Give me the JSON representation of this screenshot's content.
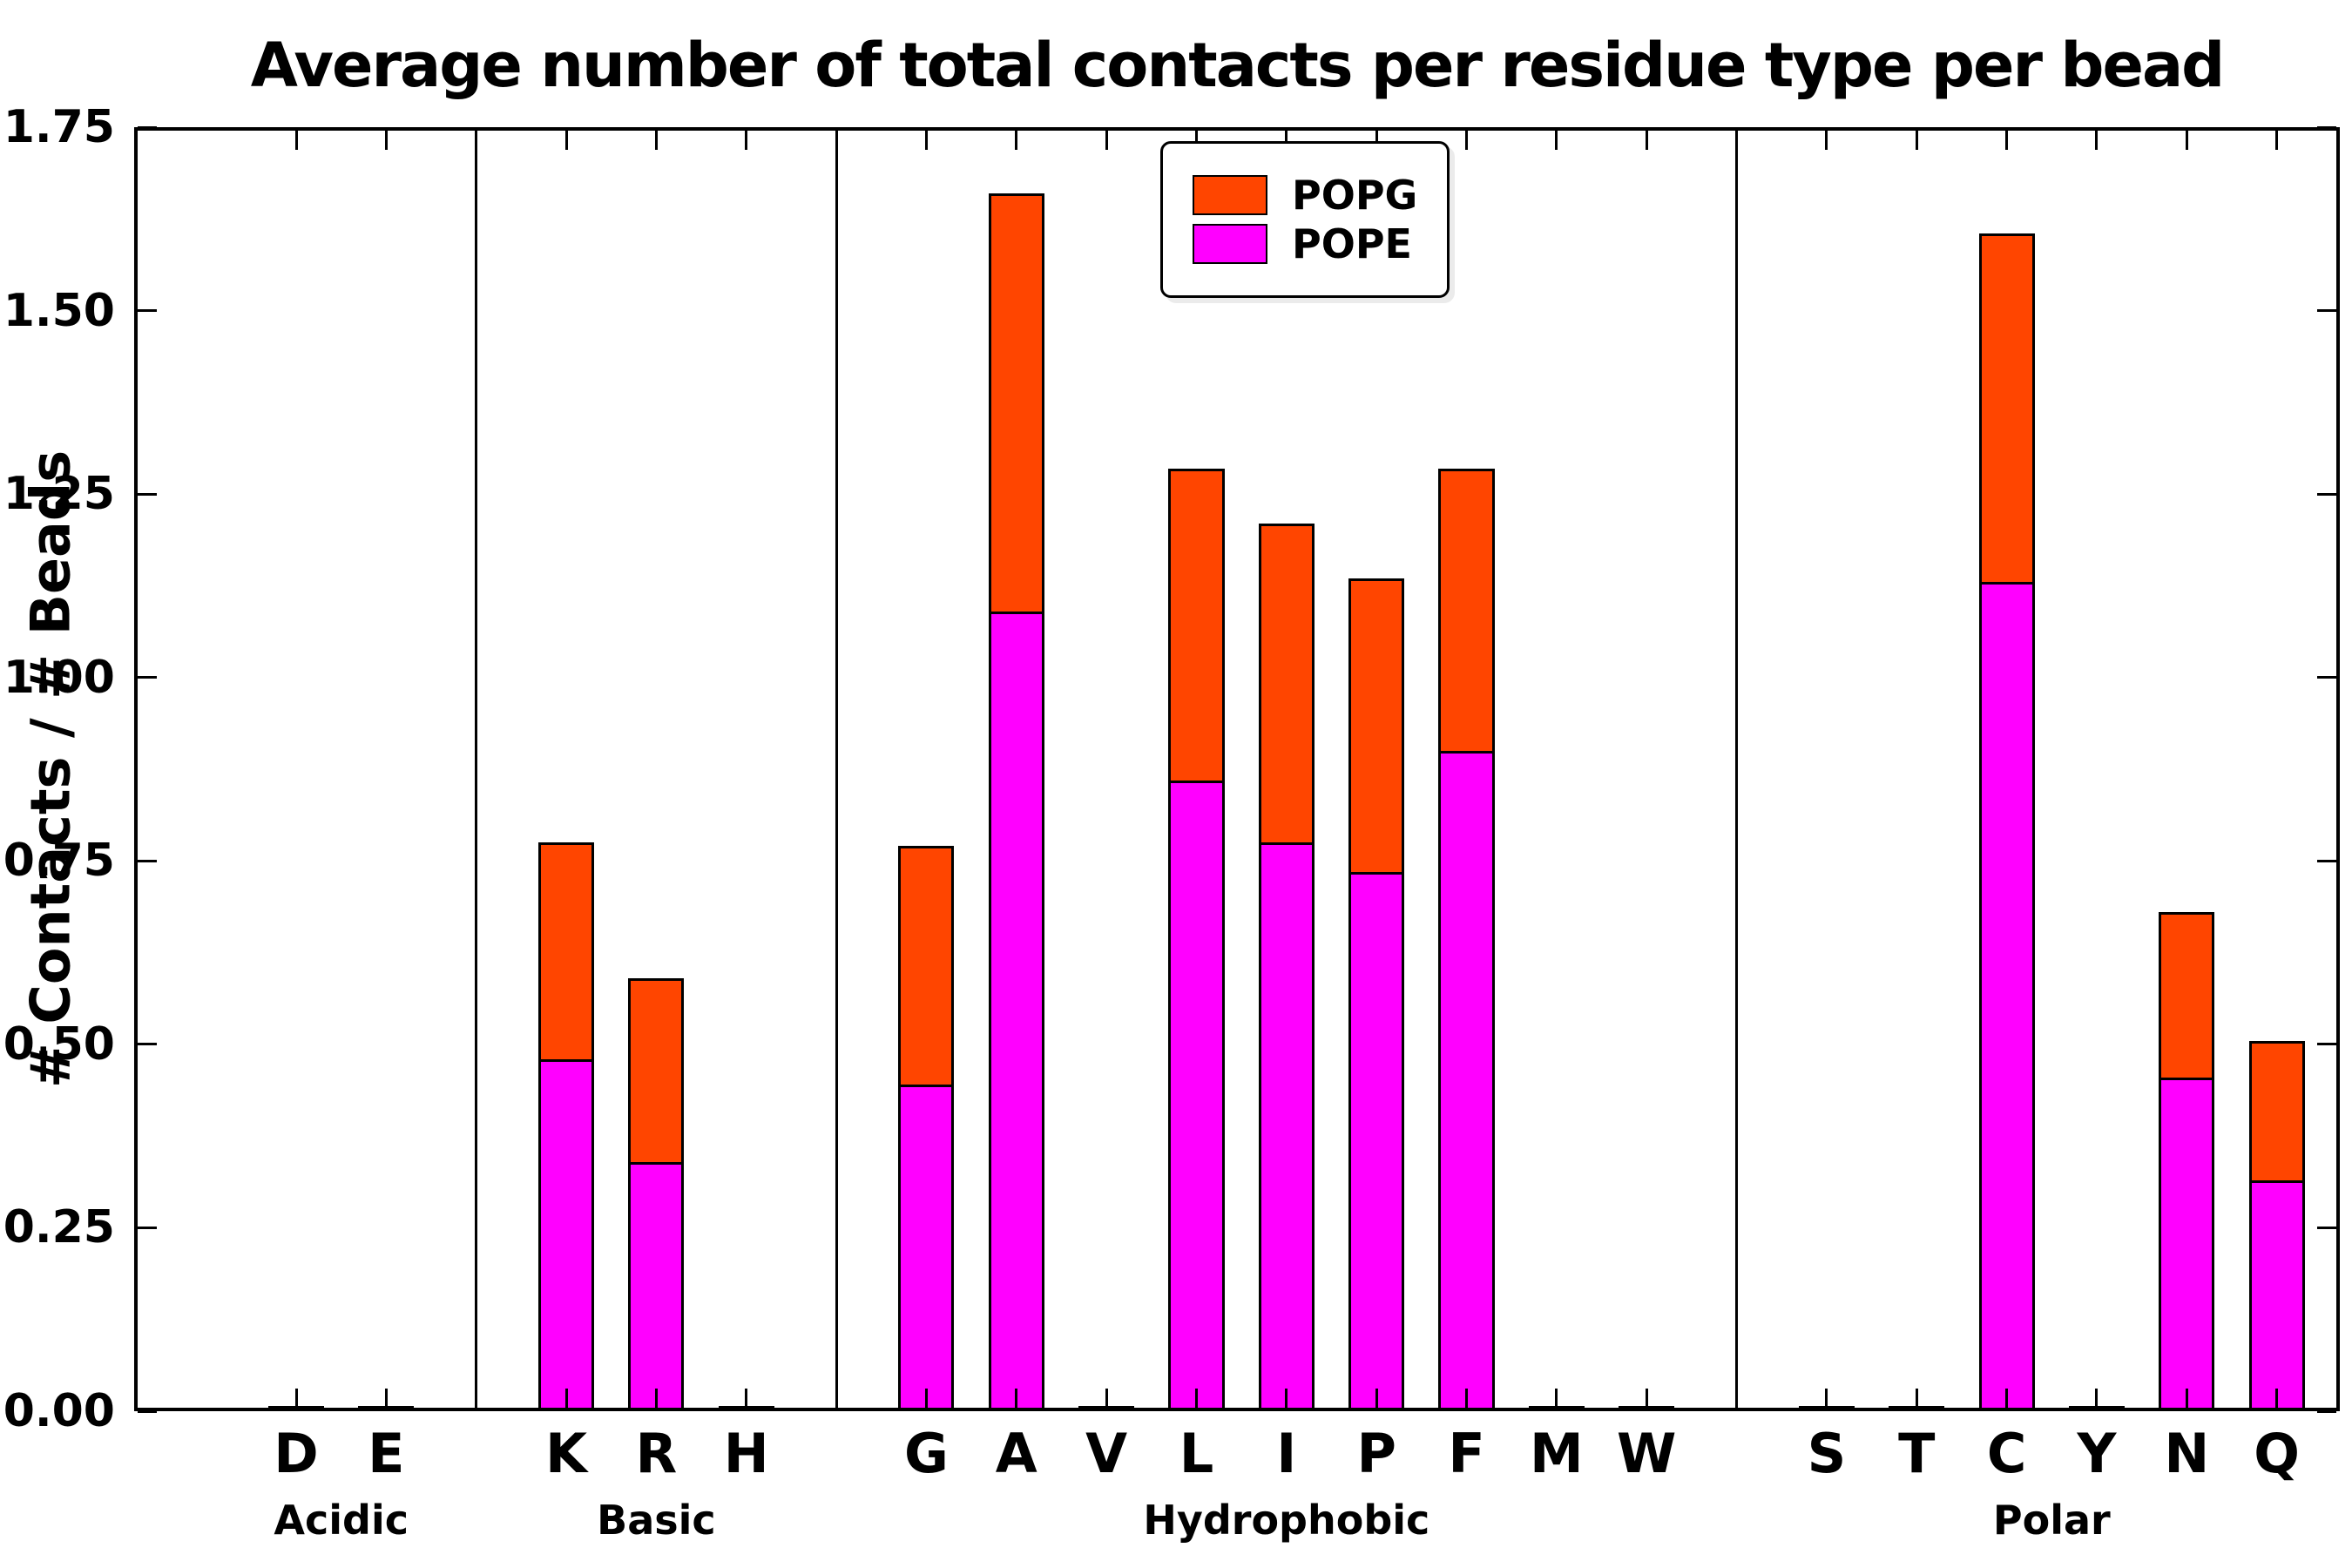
{
  "figure": {
    "title": "Average number of total contacts per residue type per bead",
    "ylabel": "# Contacts / # Beads"
  },
  "legend": {
    "entries": [
      {
        "label": "POPG",
        "color": "#FF4500"
      },
      {
        "label": "POPE",
        "color": "#FF00FF"
      }
    ]
  },
  "chart_data": {
    "type": "bar",
    "stacked": true,
    "title": "Average number of total contacts per residue type per bead",
    "xlabel": "",
    "ylabel": "# Contacts / # Beads",
    "ylim": [
      0,
      1.75
    ],
    "ytick_step": 0.25,
    "ytick_labels": [
      "0.00",
      "0.25",
      "0.50",
      "0.75",
      "1.00",
      "1.25",
      "1.50",
      "1.75"
    ],
    "grid": false,
    "legend_position": "upper center",
    "series_order_bottom_to_top": [
      "POPE",
      "POPG"
    ],
    "colors": {
      "POPG": "#FF4500",
      "POPE": "#FF00FF"
    },
    "groups": [
      {
        "name": "Acidic",
        "categories": [
          "D",
          "E"
        ],
        "POPE": [
          0.003,
          0.002
        ],
        "POPG": [
          0.002,
          0.002
        ]
      },
      {
        "name": "Basic",
        "categories": [
          "K",
          "R",
          "H"
        ],
        "POPE": [
          0.48,
          0.34,
          0.002
        ],
        "POPG": [
          0.295,
          0.25,
          0.002
        ]
      },
      {
        "name": "Hydrophobic",
        "categories": [
          "G",
          "A",
          "V",
          "L",
          "I",
          "P",
          "F",
          "M",
          "W"
        ],
        "POPE": [
          0.445,
          1.09,
          0.003,
          0.86,
          0.775,
          0.735,
          0.9,
          0.002,
          0.002
        ],
        "POPG": [
          0.325,
          0.57,
          0.003,
          0.425,
          0.435,
          0.4,
          0.385,
          0.002,
          0.002
        ]
      },
      {
        "name": "Polar",
        "categories": [
          "S",
          "T",
          "C",
          "Y",
          "N",
          "Q"
        ],
        "POPE": [
          0.002,
          0.003,
          1.13,
          0.003,
          0.455,
          0.315
        ],
        "POPG": [
          0.002,
          0.003,
          0.475,
          0.003,
          0.225,
          0.19
        ]
      }
    ]
  }
}
